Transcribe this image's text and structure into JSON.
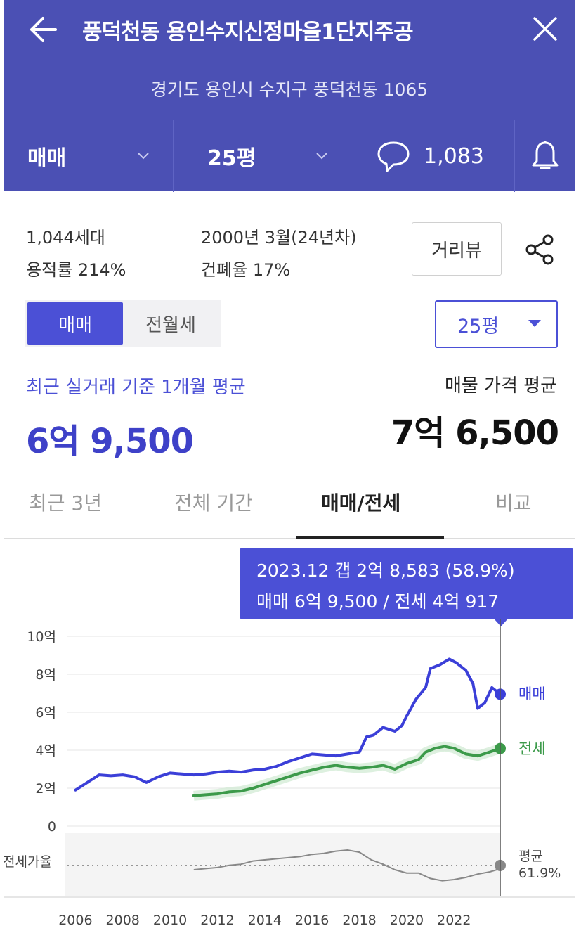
{
  "header": {
    "title": "풍덕천동 용인수지신정마을1단지주공",
    "address": "경기도 용인시 수지구 풍덕천동 1065",
    "deal_type": "매매",
    "size": "25평",
    "comment_count": "1,083",
    "icons": [
      "back-arrow-icon",
      "close-icon",
      "chevron-down-icon",
      "speech-bubble-icon",
      "bell-icon"
    ]
  },
  "info": {
    "households": "1,044세대",
    "floor_area_ratio": "용적률 214%",
    "built": "2000년 3월(24년차)",
    "coverage_ratio": "건폐율 17%",
    "review_label": "거리뷰",
    "share_icon": "share-icon"
  },
  "segment": {
    "active": "매매",
    "inactive": "전월세"
  },
  "size_select": {
    "value": "25평"
  },
  "price": {
    "caption": "최근 실거래 기준 1개월 평균",
    "value": "6억 9,500",
    "listing_caption": "매물 가격 평균",
    "listing_value": "7억 6,500"
  },
  "tabs": [
    {
      "label": "최근 3년",
      "active": false
    },
    {
      "label": "전체 기간",
      "active": false
    },
    {
      "label": "매매/전세",
      "active": true
    },
    {
      "label": "비교",
      "active": false
    }
  ],
  "tooltip": {
    "line1": "2023.12  갭 2억 8,583 (58.9%)",
    "line2": "매매 6억 9,500 / 전세 4억 917"
  },
  "chart_data": {
    "type": "line",
    "y_ticks": [
      "10억",
      "8억",
      "6억",
      "4억",
      "2억",
      "0"
    ],
    "ylim": [
      0,
      10
    ],
    "x_ticks": [
      "2006",
      "2008",
      "2010",
      "2012",
      "2014",
      "2016",
      "2018",
      "2020",
      "2022"
    ],
    "xlim": [
      2005.9,
      2023.95
    ],
    "series": [
      {
        "name": "매매",
        "color": "#3b3fd8",
        "x": [
          2006.0,
          2006.5,
          2007.0,
          2007.5,
          2008.0,
          2008.5,
          2009.0,
          2009.5,
          2010.0,
          2010.5,
          2011.0,
          2011.5,
          2012.0,
          2012.5,
          2013.0,
          2013.5,
          2014.0,
          2014.5,
          2015.0,
          2015.5,
          2016.0,
          2016.5,
          2017.0,
          2017.5,
          2018.0,
          2018.3,
          2018.6,
          2019.0,
          2019.5,
          2019.8,
          2020.0,
          2020.4,
          2020.8,
          2021.0,
          2021.4,
          2021.8,
          2022.1,
          2022.5,
          2022.8,
          2023.0,
          2023.3,
          2023.6,
          2023.95
        ],
        "y": [
          1.9,
          2.3,
          2.7,
          2.65,
          2.7,
          2.6,
          2.3,
          2.6,
          2.8,
          2.75,
          2.7,
          2.75,
          2.85,
          2.9,
          2.85,
          2.95,
          3.0,
          3.15,
          3.4,
          3.6,
          3.8,
          3.75,
          3.7,
          3.8,
          3.9,
          4.7,
          4.8,
          5.2,
          5.0,
          5.3,
          5.8,
          6.7,
          7.3,
          8.3,
          8.5,
          8.8,
          8.6,
          8.2,
          7.5,
          6.2,
          6.5,
          7.3,
          6.95
        ]
      },
      {
        "name": "전세",
        "color": "#3c9a4a",
        "x": [
          2011.0,
          2011.5,
          2012.0,
          2012.5,
          2013.0,
          2013.5,
          2014.0,
          2014.5,
          2015.0,
          2015.5,
          2016.0,
          2016.5,
          2017.0,
          2017.5,
          2018.0,
          2018.5,
          2019.0,
          2019.5,
          2020.0,
          2020.5,
          2020.8,
          2021.2,
          2021.6,
          2022.0,
          2022.5,
          2023.0,
          2023.5,
          2023.95
        ],
        "y": [
          1.6,
          1.65,
          1.7,
          1.8,
          1.85,
          2.0,
          2.2,
          2.4,
          2.6,
          2.8,
          2.95,
          3.1,
          3.2,
          3.1,
          3.05,
          3.1,
          3.2,
          3.0,
          3.3,
          3.5,
          3.9,
          4.1,
          4.2,
          4.1,
          3.8,
          3.7,
          3.9,
          4.09
        ]
      }
    ],
    "ratio_panel": {
      "label": "전세가율",
      "avg_label": "평균",
      "avg_value": "61.9%",
      "x": [
        2011.0,
        2011.5,
        2012.0,
        2012.5,
        2013.0,
        2013.5,
        2014.0,
        2014.5,
        2015.0,
        2015.5,
        2016.0,
        2016.5,
        2017.0,
        2017.5,
        2018.0,
        2018.5,
        2019.0,
        2019.5,
        2020.0,
        2020.5,
        2021.0,
        2021.5,
        2022.0,
        2022.5,
        2023.0,
        2023.5,
        2023.95
      ],
      "y": [
        58,
        59,
        60,
        62,
        63,
        66,
        67,
        68,
        69,
        70,
        72,
        73,
        75,
        76,
        74,
        67,
        63,
        58,
        55,
        55,
        50,
        48,
        49,
        51,
        54,
        56,
        58.9
      ]
    }
  }
}
